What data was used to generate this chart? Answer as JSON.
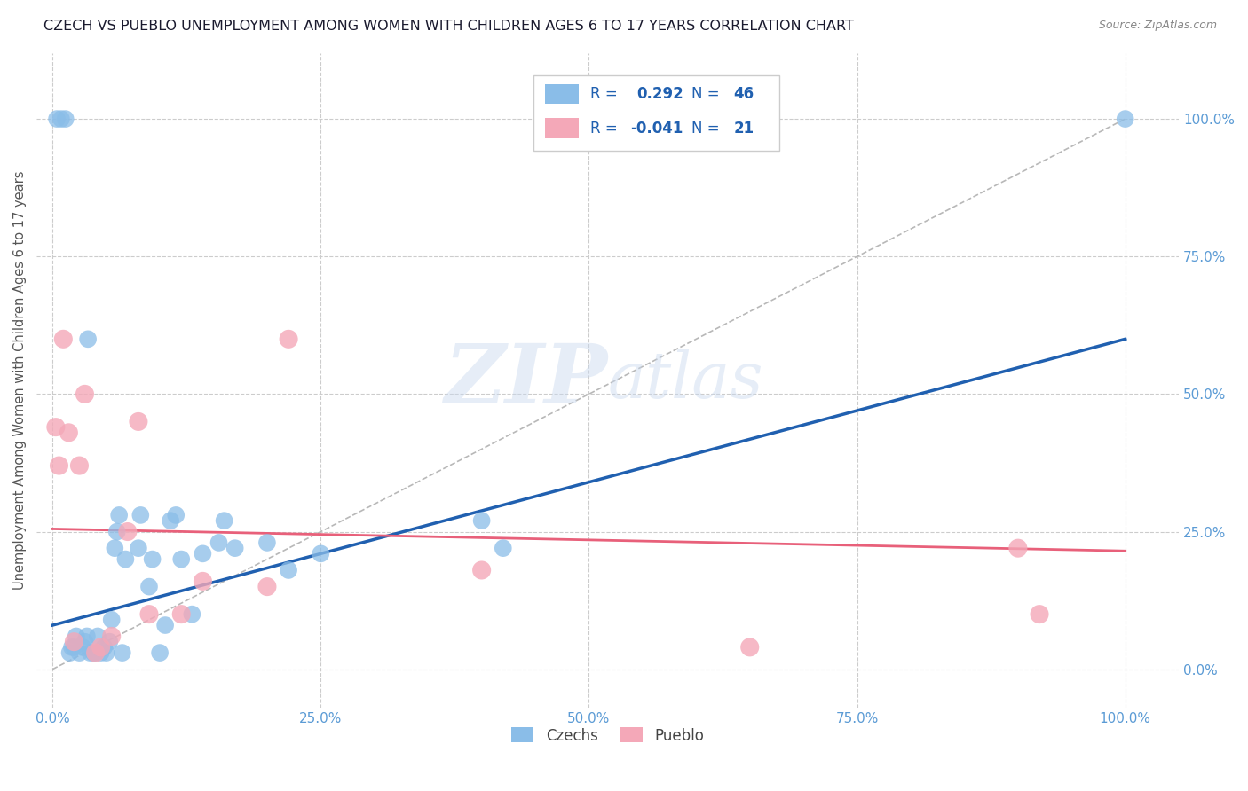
{
  "title": "CZECH VS PUEBLO UNEMPLOYMENT AMONG WOMEN WITH CHILDREN AGES 6 TO 17 YEARS CORRELATION CHART",
  "source": "Source: ZipAtlas.com",
  "ylabel": "Unemployment Among Women with Children Ages 6 to 17 years",
  "tick_color": "#5b9bd5",
  "czech_color": "#8abde8",
  "pueblo_color": "#f4a8b8",
  "czech_trend_color": "#2060b0",
  "pueblo_trend_color": "#e8607a",
  "ref_line_color": "#b8b8b8",
  "grid_color": "#cccccc",
  "watermark_color": "#c8d8ee",
  "legend_text_color": "#2060b0",
  "legend_border_color": "#cccccc",
  "xlim": [
    -0.015,
    1.05
  ],
  "ylim": [
    -0.07,
    1.12
  ],
  "czech_x": [
    0.004,
    0.008,
    0.012,
    0.016,
    0.018,
    0.02,
    0.022,
    0.025,
    0.028,
    0.03,
    0.032,
    0.033,
    0.035,
    0.038,
    0.04,
    0.042,
    0.045,
    0.048,
    0.05,
    0.053,
    0.055,
    0.058,
    0.06,
    0.062,
    0.065,
    0.068,
    0.08,
    0.082,
    0.09,
    0.093,
    0.1,
    0.105,
    0.11,
    0.115,
    0.12,
    0.13,
    0.14,
    0.155,
    0.16,
    0.17,
    0.2,
    0.22,
    0.25,
    0.4,
    0.42,
    1.0
  ],
  "czech_y": [
    1.0,
    1.0,
    1.0,
    0.03,
    0.04,
    0.04,
    0.06,
    0.03,
    0.04,
    0.05,
    0.06,
    0.6,
    0.03,
    0.03,
    0.03,
    0.06,
    0.03,
    0.04,
    0.03,
    0.05,
    0.09,
    0.22,
    0.25,
    0.28,
    0.03,
    0.2,
    0.22,
    0.28,
    0.15,
    0.2,
    0.03,
    0.08,
    0.27,
    0.28,
    0.2,
    0.1,
    0.21,
    0.23,
    0.27,
    0.22,
    0.23,
    0.18,
    0.21,
    0.27,
    0.22,
    1.0
  ],
  "pueblo_x": [
    0.003,
    0.006,
    0.01,
    0.015,
    0.02,
    0.025,
    0.03,
    0.04,
    0.045,
    0.055,
    0.07,
    0.08,
    0.09,
    0.12,
    0.14,
    0.2,
    0.22,
    0.4,
    0.65,
    0.9,
    0.92
  ],
  "pueblo_y": [
    0.44,
    0.37,
    0.6,
    0.43,
    0.05,
    0.37,
    0.5,
    0.03,
    0.04,
    0.06,
    0.25,
    0.45,
    0.1,
    0.1,
    0.16,
    0.15,
    0.6,
    0.18,
    0.04,
    0.22,
    0.1
  ],
  "czech_trend_x0": 0.0,
  "czech_trend_y0": 0.08,
  "czech_trend_x1": 1.0,
  "czech_trend_y1": 0.6,
  "pueblo_trend_x0": 0.0,
  "pueblo_trend_y0": 0.255,
  "pueblo_trend_x1": 1.0,
  "pueblo_trend_y1": 0.215
}
